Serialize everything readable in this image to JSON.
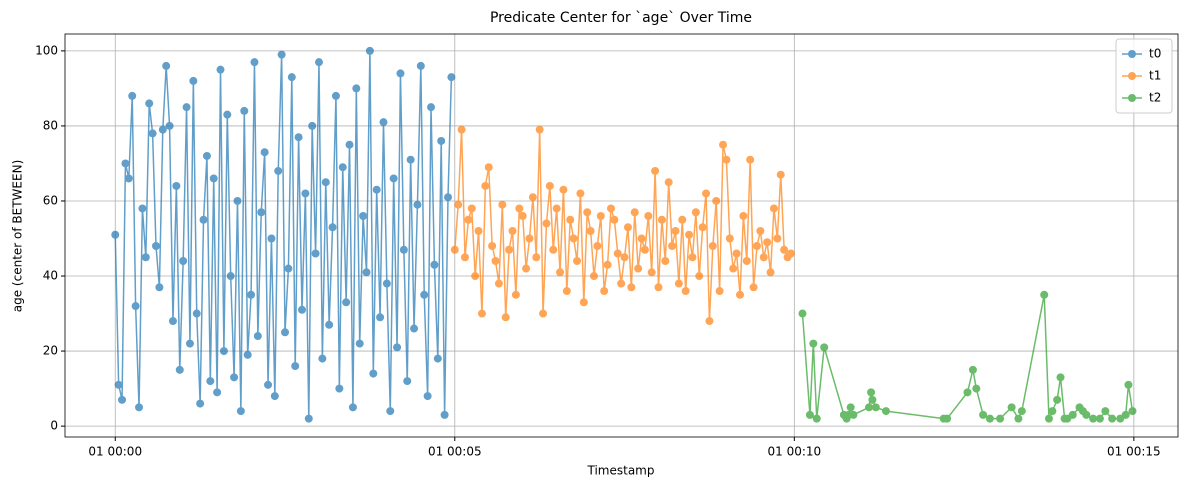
{
  "chart_data": {
    "type": "line",
    "title": "Predicate Center for `age` Over Time",
    "xlabel": "Timestamp",
    "ylabel": "age (center of BETWEEN)",
    "xlim": [
      -0.74,
      15.65
    ],
    "ylim": [
      -2.9,
      104.5
    ],
    "xticks": [
      {
        "value": 0,
        "label": "01 00:00"
      },
      {
        "value": 5,
        "label": "01 00:05"
      },
      {
        "value": 10,
        "label": "01 00:10"
      },
      {
        "value": 15,
        "label": "01 00:15"
      }
    ],
    "yticks": [
      0,
      20,
      40,
      60,
      80,
      100
    ],
    "grid": true,
    "legend": "upper right",
    "series": [
      {
        "name": "t0",
        "color": "#1f77b4",
        "x": [
          0,
          0.05,
          0.1,
          0.15,
          0.2,
          0.25,
          0.3,
          0.35,
          0.4,
          0.45,
          0.5,
          0.55,
          0.6,
          0.65,
          0.7,
          0.75,
          0.8,
          0.85,
          0.9,
          0.95,
          1,
          1.05,
          1.1,
          1.15,
          1.2,
          1.25,
          1.3,
          1.35,
          1.4,
          1.45,
          1.5,
          1.55,
          1.6,
          1.65,
          1.7,
          1.75,
          1.8,
          1.85,
          1.9,
          1.95,
          2,
          2.05,
          2.1,
          2.15,
          2.2,
          2.25,
          2.3,
          2.35,
          2.4,
          2.45,
          2.5,
          2.55,
          2.6,
          2.65,
          2.7,
          2.75,
          2.8,
          2.85,
          2.9,
          2.95,
          3,
          3.05,
          3.1,
          3.15,
          3.2,
          3.25,
          3.3,
          3.35,
          3.4,
          3.45,
          3.5,
          3.55,
          3.6,
          3.65,
          3.7,
          3.75,
          3.8,
          3.85,
          3.9,
          3.95,
          4,
          4.05,
          4.1,
          4.15,
          4.2,
          4.25,
          4.3,
          4.35,
          4.4,
          4.45,
          4.5,
          4.55,
          4.6,
          4.65,
          4.7,
          4.75,
          4.8,
          4.85,
          4.9,
          4.95
        ],
        "values": [
          51,
          11,
          7,
          70,
          66,
          88,
          32,
          5,
          58,
          45,
          86,
          78,
          48,
          37,
          79,
          96,
          80,
          28,
          64,
          15,
          44,
          85,
          22,
          92,
          30,
          6,
          55,
          72,
          12,
          66,
          9,
          95,
          20,
          83,
          40,
          13,
          60,
          4,
          84,
          19,
          35,
          97,
          24,
          57,
          73,
          11,
          50,
          8,
          68,
          99,
          25,
          42,
          93,
          16,
          77,
          31,
          62,
          2,
          80,
          46,
          97,
          18,
          65,
          27,
          53,
          88,
          10,
          69,
          33,
          75,
          5,
          90,
          22,
          56,
          41,
          100,
          14,
          63,
          29,
          81,
          38,
          4,
          66,
          21,
          94,
          47,
          12,
          71,
          26,
          59,
          96,
          35,
          8,
          85,
          43,
          18,
          76,
          3,
          61,
          93
        ]
      },
      {
        "name": "t1",
        "color": "#ff7f0e",
        "x": [
          5,
          5.05,
          5.1,
          5.15,
          5.2,
          5.25,
          5.3,
          5.35,
          5.4,
          5.45,
          5.5,
          5.55,
          5.6,
          5.65,
          5.7,
          5.75,
          5.8,
          5.85,
          5.9,
          5.95,
          6,
          6.05,
          6.1,
          6.15,
          6.2,
          6.25,
          6.3,
          6.35,
          6.4,
          6.45,
          6.5,
          6.55,
          6.6,
          6.65,
          6.7,
          6.75,
          6.8,
          6.85,
          6.9,
          6.95,
          7,
          7.05,
          7.1,
          7.15,
          7.2,
          7.25,
          7.3,
          7.35,
          7.4,
          7.45,
          7.5,
          7.55,
          7.6,
          7.65,
          7.7,
          7.75,
          7.8,
          7.85,
          7.9,
          7.95,
          8,
          8.05,
          8.1,
          8.15,
          8.2,
          8.25,
          8.3,
          8.35,
          8.4,
          8.45,
          8.5,
          8.55,
          8.6,
          8.65,
          8.7,
          8.75,
          8.8,
          8.85,
          8.9,
          8.95,
          9,
          9.05,
          9.1,
          9.15,
          9.2,
          9.25,
          9.3,
          9.35,
          9.4,
          9.45,
          9.5,
          9.55,
          9.6,
          9.65,
          9.7,
          9.75,
          9.8,
          9.85,
          9.9,
          9.95
        ],
        "values": [
          47,
          59,
          79,
          45,
          55,
          58,
          40,
          52,
          30,
          64,
          69,
          48,
          44,
          38,
          59,
          29,
          47,
          52,
          35,
          58,
          56,
          42,
          50,
          61,
          45,
          79,
          30,
          54,
          64,
          47,
          58,
          41,
          63,
          36,
          55,
          50,
          44,
          62,
          33,
          57,
          52,
          40,
          48,
          56,
          36,
          43,
          58,
          55,
          46,
          38,
          45,
          53,
          37,
          57,
          42,
          50,
          47,
          56,
          41,
          68,
          37,
          55,
          44,
          65,
          48,
          52,
          38,
          55,
          36,
          51,
          45,
          57,
          40,
          53,
          62,
          28,
          48,
          60,
          36,
          75,
          71,
          50,
          42,
          46,
          35,
          56,
          44,
          71,
          37,
          48,
          52,
          45,
          49,
          41,
          58,
          50,
          67,
          47,
          45,
          46
        ]
      },
      {
        "name": "t2",
        "color": "#2ca02c",
        "x": [
          10.12,
          10.23,
          10.28,
          10.33,
          10.44,
          10.73,
          10.77,
          10.8,
          10.83,
          10.87,
          11.1,
          11.13,
          11.15,
          11.2,
          11.35,
          12.2,
          12.25,
          12.55,
          12.63,
          12.68,
          12.78,
          12.88,
          13.03,
          13.2,
          13.3,
          13.35,
          13.68,
          13.75,
          13.8,
          13.87,
          13.92,
          13.98,
          14.02,
          14.1,
          14.2,
          14.25,
          14.3,
          14.4,
          14.5,
          14.58,
          14.68,
          14.8,
          14.88,
          14.92,
          14.98
        ],
        "values": [
          30,
          3,
          22,
          2,
          21,
          3,
          2,
          3,
          5,
          3,
          5,
          9,
          7,
          5,
          4,
          2,
          2,
          9,
          15,
          10,
          3,
          2,
          2,
          5,
          2,
          4,
          35,
          2,
          4,
          7,
          13,
          2,
          2,
          3,
          5,
          4,
          3,
          2,
          2,
          4,
          2,
          2,
          3,
          11,
          4
        ]
      }
    ]
  }
}
